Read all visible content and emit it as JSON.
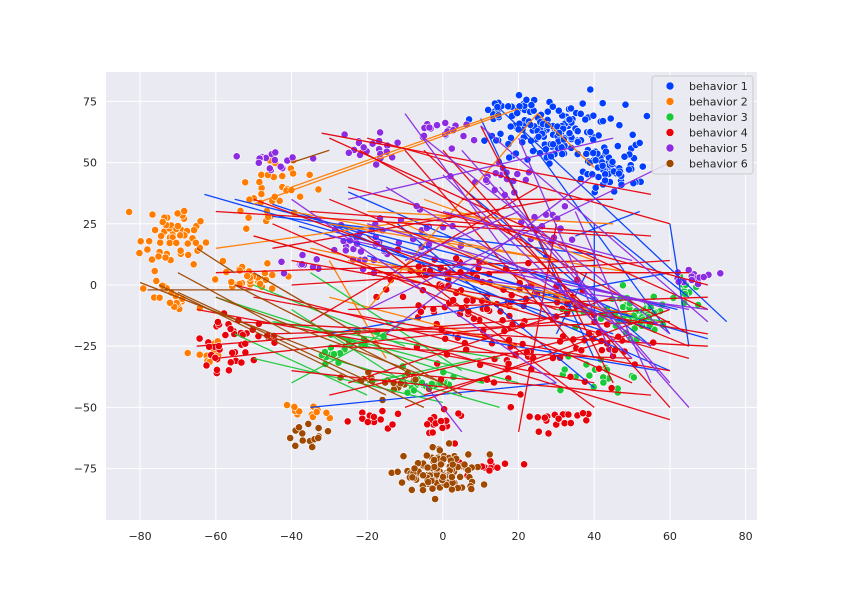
{
  "chart_data": {
    "type": "scatter",
    "title": "",
    "xlabel": "",
    "ylabel": "",
    "xlim": [
      -89,
      83
    ],
    "ylim": [
      -96,
      87
    ],
    "grid": true,
    "legend_position": "top-right",
    "x_ticks": [
      -80,
      -60,
      -40,
      -20,
      0,
      20,
      40,
      60,
      80
    ],
    "y_ticks": [
      -75,
      -50,
      -25,
      0,
      25,
      50,
      75
    ],
    "x_tick_labels": [
      "−80",
      "−60",
      "−40",
      "−20",
      "0",
      "20",
      "40",
      "60",
      "80"
    ],
    "y_tick_labels": [
      "−75",
      "−50",
      "−25",
      "0",
      "25",
      "50",
      "75"
    ],
    "series": [
      {
        "name": "behavior 1",
        "color": "#023eff",
        "clusters": [
          {
            "cx": 30,
            "cy": 62,
            "sx": 9,
            "sy": 6,
            "n": 150
          },
          {
            "cx": 45,
            "cy": 48,
            "sx": 5,
            "sy": 5,
            "n": 55
          },
          {
            "cx": 18,
            "cy": 72,
            "sx": 3,
            "sy": 3,
            "n": 20
          }
        ],
        "segments": [
          [
            -63,
            37,
            70,
            -22
          ],
          [
            -55,
            35,
            62,
            -10
          ],
          [
            -45,
            33,
            55,
            -18
          ],
          [
            -38,
            24,
            50,
            -16
          ],
          [
            -45,
            28,
            42,
            12
          ],
          [
            -25,
            38,
            50,
            -13
          ],
          [
            -20,
            12,
            45,
            -20
          ],
          [
            15,
            72,
            75,
            -15
          ],
          [
            20,
            65,
            60,
            -20
          ],
          [
            10,
            68,
            40,
            -30
          ],
          [
            40,
            25,
            40,
            -15
          ],
          [
            35,
            20,
            52,
            30
          ],
          [
            -12,
            25,
            40,
            -42
          ],
          [
            -30,
            -20,
            60,
            5
          ],
          [
            45,
            20,
            65,
            -5
          ],
          [
            5,
            40,
            55,
            -25
          ],
          [
            -30,
            25,
            60,
            -35
          ],
          [
            0,
            -20,
            57,
            -35
          ],
          [
            -35,
            -50,
            30,
            -40
          ],
          [
            60,
            25,
            65,
            -25
          ],
          [
            38,
            5,
            30,
            -20
          ]
        ]
      },
      {
        "name": "behavior 2",
        "color": "#ff7c00",
        "clusters": [
          {
            "cx": -72,
            "cy": 20,
            "sx": 4,
            "sy": 6,
            "n": 55
          },
          {
            "cx": -45,
            "cy": 37,
            "sx": 5,
            "sy": 7,
            "n": 35
          },
          {
            "cx": -52,
            "cy": 3,
            "sx": 5,
            "sy": 2.5,
            "n": 30
          },
          {
            "cx": -72,
            "cy": -5,
            "sx": 3,
            "sy": 4,
            "n": 20
          },
          {
            "cx": -60,
            "cy": -28,
            "sx": 3,
            "sy": 3,
            "n": 12
          },
          {
            "cx": -38,
            "cy": -52,
            "sx": 3,
            "sy": 2,
            "n": 12
          }
        ],
        "segments": [
          [
            -50,
            33,
            20,
            72
          ],
          [
            -30,
            25,
            50,
            5
          ],
          [
            -35,
            15,
            50,
            -12
          ],
          [
            -40,
            40,
            15,
            70
          ],
          [
            -25,
            10,
            35,
            -5
          ],
          [
            -20,
            30,
            45,
            25
          ],
          [
            -50,
            20,
            20,
            -10
          ],
          [
            -20,
            -10,
            25,
            70
          ],
          [
            -10,
            25,
            45,
            -15
          ],
          [
            -60,
            15,
            10,
            30
          ],
          [
            25,
            70,
            40,
            48
          ],
          [
            -30,
            -5,
            20,
            -25
          ],
          [
            -40,
            30,
            30,
            10
          ],
          [
            -15,
            -30,
            -30,
            10
          ],
          [
            -5,
            35,
            40,
            10
          ]
        ]
      },
      {
        "name": "behavior 3",
        "color": "#1ac938",
        "clusters": [
          {
            "cx": 50,
            "cy": -12,
            "sx": 6,
            "sy": 4,
            "n": 60
          },
          {
            "cx": -5,
            "cy": -40,
            "sx": 6,
            "sy": 3,
            "n": 25
          },
          {
            "cx": -25,
            "cy": -25,
            "sx": 5,
            "sy": 3,
            "n": 20
          },
          {
            "cx": 40,
            "cy": -38,
            "sx": 4,
            "sy": 4,
            "n": 20
          },
          {
            "cx": 64,
            "cy": 0,
            "sx": 2,
            "sy": 3,
            "n": 10
          }
        ],
        "segments": [
          [
            -60,
            -5,
            10,
            -40
          ],
          [
            -40,
            -10,
            -5,
            -45
          ],
          [
            -30,
            -20,
            20,
            -40
          ],
          [
            -50,
            -30,
            0,
            -48
          ],
          [
            -45,
            -15,
            15,
            -30
          ],
          [
            -55,
            -20,
            -20,
            -45
          ],
          [
            -35,
            5,
            5,
            -35
          ],
          [
            -30,
            -30,
            15,
            -50
          ],
          [
            30,
            -10,
            60,
            -15
          ],
          [
            -50,
            0,
            -10,
            -25
          ],
          [
            -40,
            -40,
            -10,
            -15
          ],
          [
            -20,
            -40,
            10,
            -30
          ]
        ]
      },
      {
        "name": "behavior 4",
        "color": "#e8000b",
        "clusters": [
          {
            "cx": 15,
            "cy": -8,
            "sx": 14,
            "sy": 8,
            "n": 90
          },
          {
            "cx": 0,
            "cy": 3,
            "sx": 8,
            "sy": 4,
            "n": 25
          },
          {
            "cx": -55,
            "cy": -20,
            "sx": 5,
            "sy": 3,
            "n": 25
          },
          {
            "cx": -58,
            "cy": -30,
            "sx": 4,
            "sy": 2.5,
            "n": 18
          },
          {
            "cx": -20,
            "cy": -55,
            "sx": 4,
            "sy": 2,
            "n": 12
          },
          {
            "cx": 0,
            "cy": -57,
            "sx": 3,
            "sy": 3,
            "n": 15
          },
          {
            "cx": 30,
            "cy": -55,
            "sx": 5,
            "sy": 3,
            "n": 20
          },
          {
            "cx": 13,
            "cy": -73,
            "sx": 4,
            "sy": 2,
            "n": 12
          },
          {
            "cx": 22,
            "cy": -30,
            "sx": 12,
            "sy": 6,
            "n": 40
          },
          {
            "cx": 45,
            "cy": -25,
            "sx": 5,
            "sy": 5,
            "n": 15
          }
        ],
        "segments": [
          [
            -32,
            62,
            55,
            37
          ],
          [
            -20,
            60,
            60,
            25
          ],
          [
            -30,
            60,
            70,
            -10
          ],
          [
            -22,
            55,
            65,
            -20
          ],
          [
            -5,
            55,
            40,
            -12
          ],
          [
            -25,
            40,
            70,
            0
          ],
          [
            -60,
            30,
            45,
            20
          ],
          [
            -55,
            -15,
            70,
            -25
          ],
          [
            -50,
            20,
            65,
            -30
          ],
          [
            -45,
            -20,
            60,
            -15
          ],
          [
            -60,
            5,
            40,
            10
          ],
          [
            -35,
            30,
            55,
            20
          ],
          [
            -40,
            10,
            70,
            -20
          ],
          [
            -65,
            -10,
            40,
            -40
          ],
          [
            -30,
            -25,
            50,
            -30
          ],
          [
            -50,
            -5,
            60,
            -35
          ],
          [
            -20,
            -35,
            55,
            -45
          ],
          [
            -10,
            -50,
            60,
            -10
          ],
          [
            -30,
            -45,
            40,
            -20
          ],
          [
            -25,
            -10,
            70,
            -5
          ],
          [
            -45,
            25,
            50,
            -40
          ],
          [
            -50,
            35,
            30,
            -10
          ],
          [
            -10,
            55,
            35,
            -25
          ],
          [
            -20,
            20,
            40,
            -50
          ],
          [
            -15,
            -20,
            60,
            -55
          ],
          [
            0,
            55,
            60,
            -50
          ],
          [
            10,
            65,
            45,
            -40
          ],
          [
            -60,
            -30,
            30,
            -15
          ],
          [
            -40,
            -35,
            20,
            -45
          ],
          [
            -55,
            0,
            20,
            -30
          ],
          [
            -35,
            -15,
            25,
            40
          ],
          [
            -5,
            -45,
            50,
            -20
          ],
          [
            -45,
            15,
            30,
            35
          ],
          [
            -25,
            -40,
            45,
            -5
          ],
          [
            20,
            -60,
            30,
            25
          ],
          [
            5,
            35,
            45,
            35
          ],
          [
            -40,
            0,
            60,
            10
          ],
          [
            -65,
            -25,
            55,
            -10
          ],
          [
            -20,
            5,
            65,
            5
          ],
          [
            -30,
            35,
            65,
            -25
          ]
        ]
      },
      {
        "name": "behavior 5",
        "color": "#8b2be2",
        "clusters": [
          {
            "cx": -20,
            "cy": 57,
            "sx": 6,
            "sy": 3,
            "n": 20
          },
          {
            "cx": 0,
            "cy": 63,
            "sx": 5,
            "sy": 2.5,
            "n": 15
          },
          {
            "cx": -45,
            "cy": 50,
            "sx": 5,
            "sy": 3,
            "n": 15
          },
          {
            "cx": -20,
            "cy": 17,
            "sx": 5,
            "sy": 6,
            "n": 30
          },
          {
            "cx": -5,
            "cy": 25,
            "sx": 5,
            "sy": 5,
            "n": 15
          },
          {
            "cx": 15,
            "cy": 45,
            "sx": 6,
            "sy": 5,
            "n": 20
          },
          {
            "cx": 27,
            "cy": 25,
            "sx": 4,
            "sy": 4,
            "n": 15
          },
          {
            "cx": 67,
            "cy": 3,
            "sx": 3,
            "sy": 2,
            "n": 15
          },
          {
            "cx": -38,
            "cy": 10,
            "sx": 3,
            "sy": 3,
            "n": 10
          }
        ],
        "segments": [
          [
            -5,
            60,
            60,
            -20
          ],
          [
            10,
            65,
            70,
            -15
          ],
          [
            -15,
            40,
            55,
            -25
          ],
          [
            0,
            45,
            50,
            -30
          ],
          [
            -20,
            25,
            60,
            -10
          ],
          [
            20,
            60,
            45,
            -30
          ],
          [
            -10,
            70,
            30,
            -15
          ],
          [
            15,
            40,
            60,
            -40
          ],
          [
            -30,
            20,
            65,
            -10
          ],
          [
            0,
            30,
            50,
            10
          ],
          [
            -20,
            -10,
            60,
            50
          ],
          [
            -15,
            -20,
            40,
            45
          ],
          [
            -5,
            5,
            70,
            -10
          ],
          [
            35,
            30,
            55,
            -40
          ],
          [
            5,
            55,
            65,
            -50
          ],
          [
            -40,
            35,
            30,
            -40
          ],
          [
            -25,
            35,
            45,
            60
          ],
          [
            -10,
            10,
            20,
            30
          ],
          [
            -5,
            -40,
            5,
            -60
          ]
        ]
      },
      {
        "name": "behavior 6",
        "color": "#9f4800",
        "clusters": [
          {
            "cx": 0,
            "cy": -77,
            "sx": 5,
            "sy": 4.5,
            "n": 120
          },
          {
            "cx": -35,
            "cy": -62,
            "sx": 3,
            "sy": 2,
            "n": 15
          },
          {
            "cx": -12,
            "cy": -40,
            "sx": 5,
            "sy": 2.5,
            "n": 20
          }
        ],
        "segments": [
          [
            -80,
            1,
            -20,
            -35
          ],
          [
            -75,
            0,
            -15,
            -45
          ],
          [
            -70,
            -3,
            -5,
            -50
          ],
          [
            -60,
            -5,
            0,
            -40
          ],
          [
            -55,
            0,
            -10,
            -35
          ],
          [
            -65,
            15,
            -55,
            5
          ],
          [
            -40,
            50,
            -30,
            55
          ],
          [
            -78,
            -2,
            -50,
            -2
          ],
          [
            -50,
            5,
            5,
            -45
          ],
          [
            -70,
            5,
            -40,
            -20
          ]
        ]
      }
    ]
  }
}
